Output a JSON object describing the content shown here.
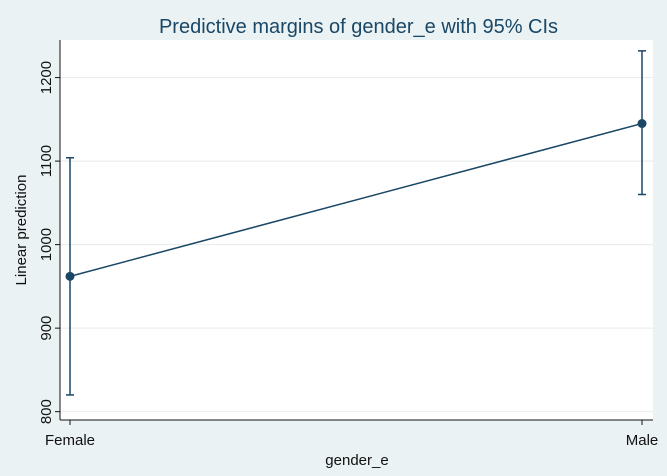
{
  "chart_data": {
    "type": "line",
    "title": "Predictive margins of gender_e with 95% CIs",
    "xlabel": "gender_e",
    "ylabel": "Linear prediction",
    "categories": [
      "Female",
      "Male"
    ],
    "series": [
      {
        "values": [
          962,
          1145
        ],
        "ci_lower": [
          820,
          1060
        ],
        "ci_upper": [
          1104,
          1232
        ]
      }
    ],
    "ylim": [
      790,
      1245
    ],
    "yticks": [
      800,
      900,
      1000,
      1100,
      1200
    ],
    "grid": true,
    "legend": "none",
    "colors": {
      "background": "#eaf2f3",
      "plot_background": "#ffffff",
      "series": "#1a4766",
      "grid": "#e6ecee",
      "title": "#1a4766",
      "axis": "#111111"
    }
  }
}
